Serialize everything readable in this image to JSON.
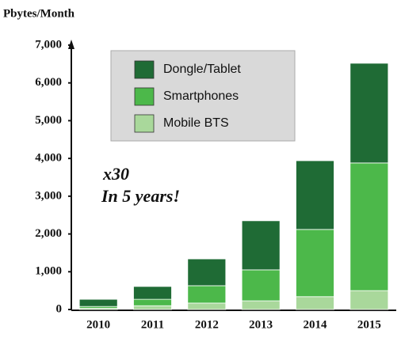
{
  "chart_data": {
    "type": "stacked_bar",
    "y_label": "Pbytes/Month",
    "annotations": [
      "x30",
      "In 5 years!"
    ],
    "categories": [
      "2010",
      "2011",
      "2012",
      "2013",
      "2014",
      "2015"
    ],
    "series": [
      {
        "name": "Mobile BTS",
        "color": "#a9d89b",
        "values": [
          30,
          100,
          170,
          230,
          340,
          500
        ]
      },
      {
        "name": "Smartphones",
        "color": "#4cb84a",
        "values": [
          50,
          170,
          460,
          820,
          1780,
          3380
        ]
      },
      {
        "name": "Dongle/Tablet",
        "color": "#1f6b35",
        "values": [
          190,
          340,
          710,
          1300,
          1820,
          2640
        ]
      }
    ],
    "ylim": [
      0,
      7000
    ],
    "yticks": [
      0,
      {
        "value": 1000,
        "label": "1,000"
      },
      {
        "value": 2000,
        "label": "2,000"
      },
      {
        "value": 3000,
        "label": "3,000"
      },
      {
        "value": 4000,
        "label": "4,000"
      },
      {
        "value": 5000,
        "label": "5,000"
      },
      {
        "value": 6000,
        "label": "6,000"
      },
      {
        "value": 7000,
        "label": "7,000"
      }
    ],
    "legend": "top-left"
  }
}
